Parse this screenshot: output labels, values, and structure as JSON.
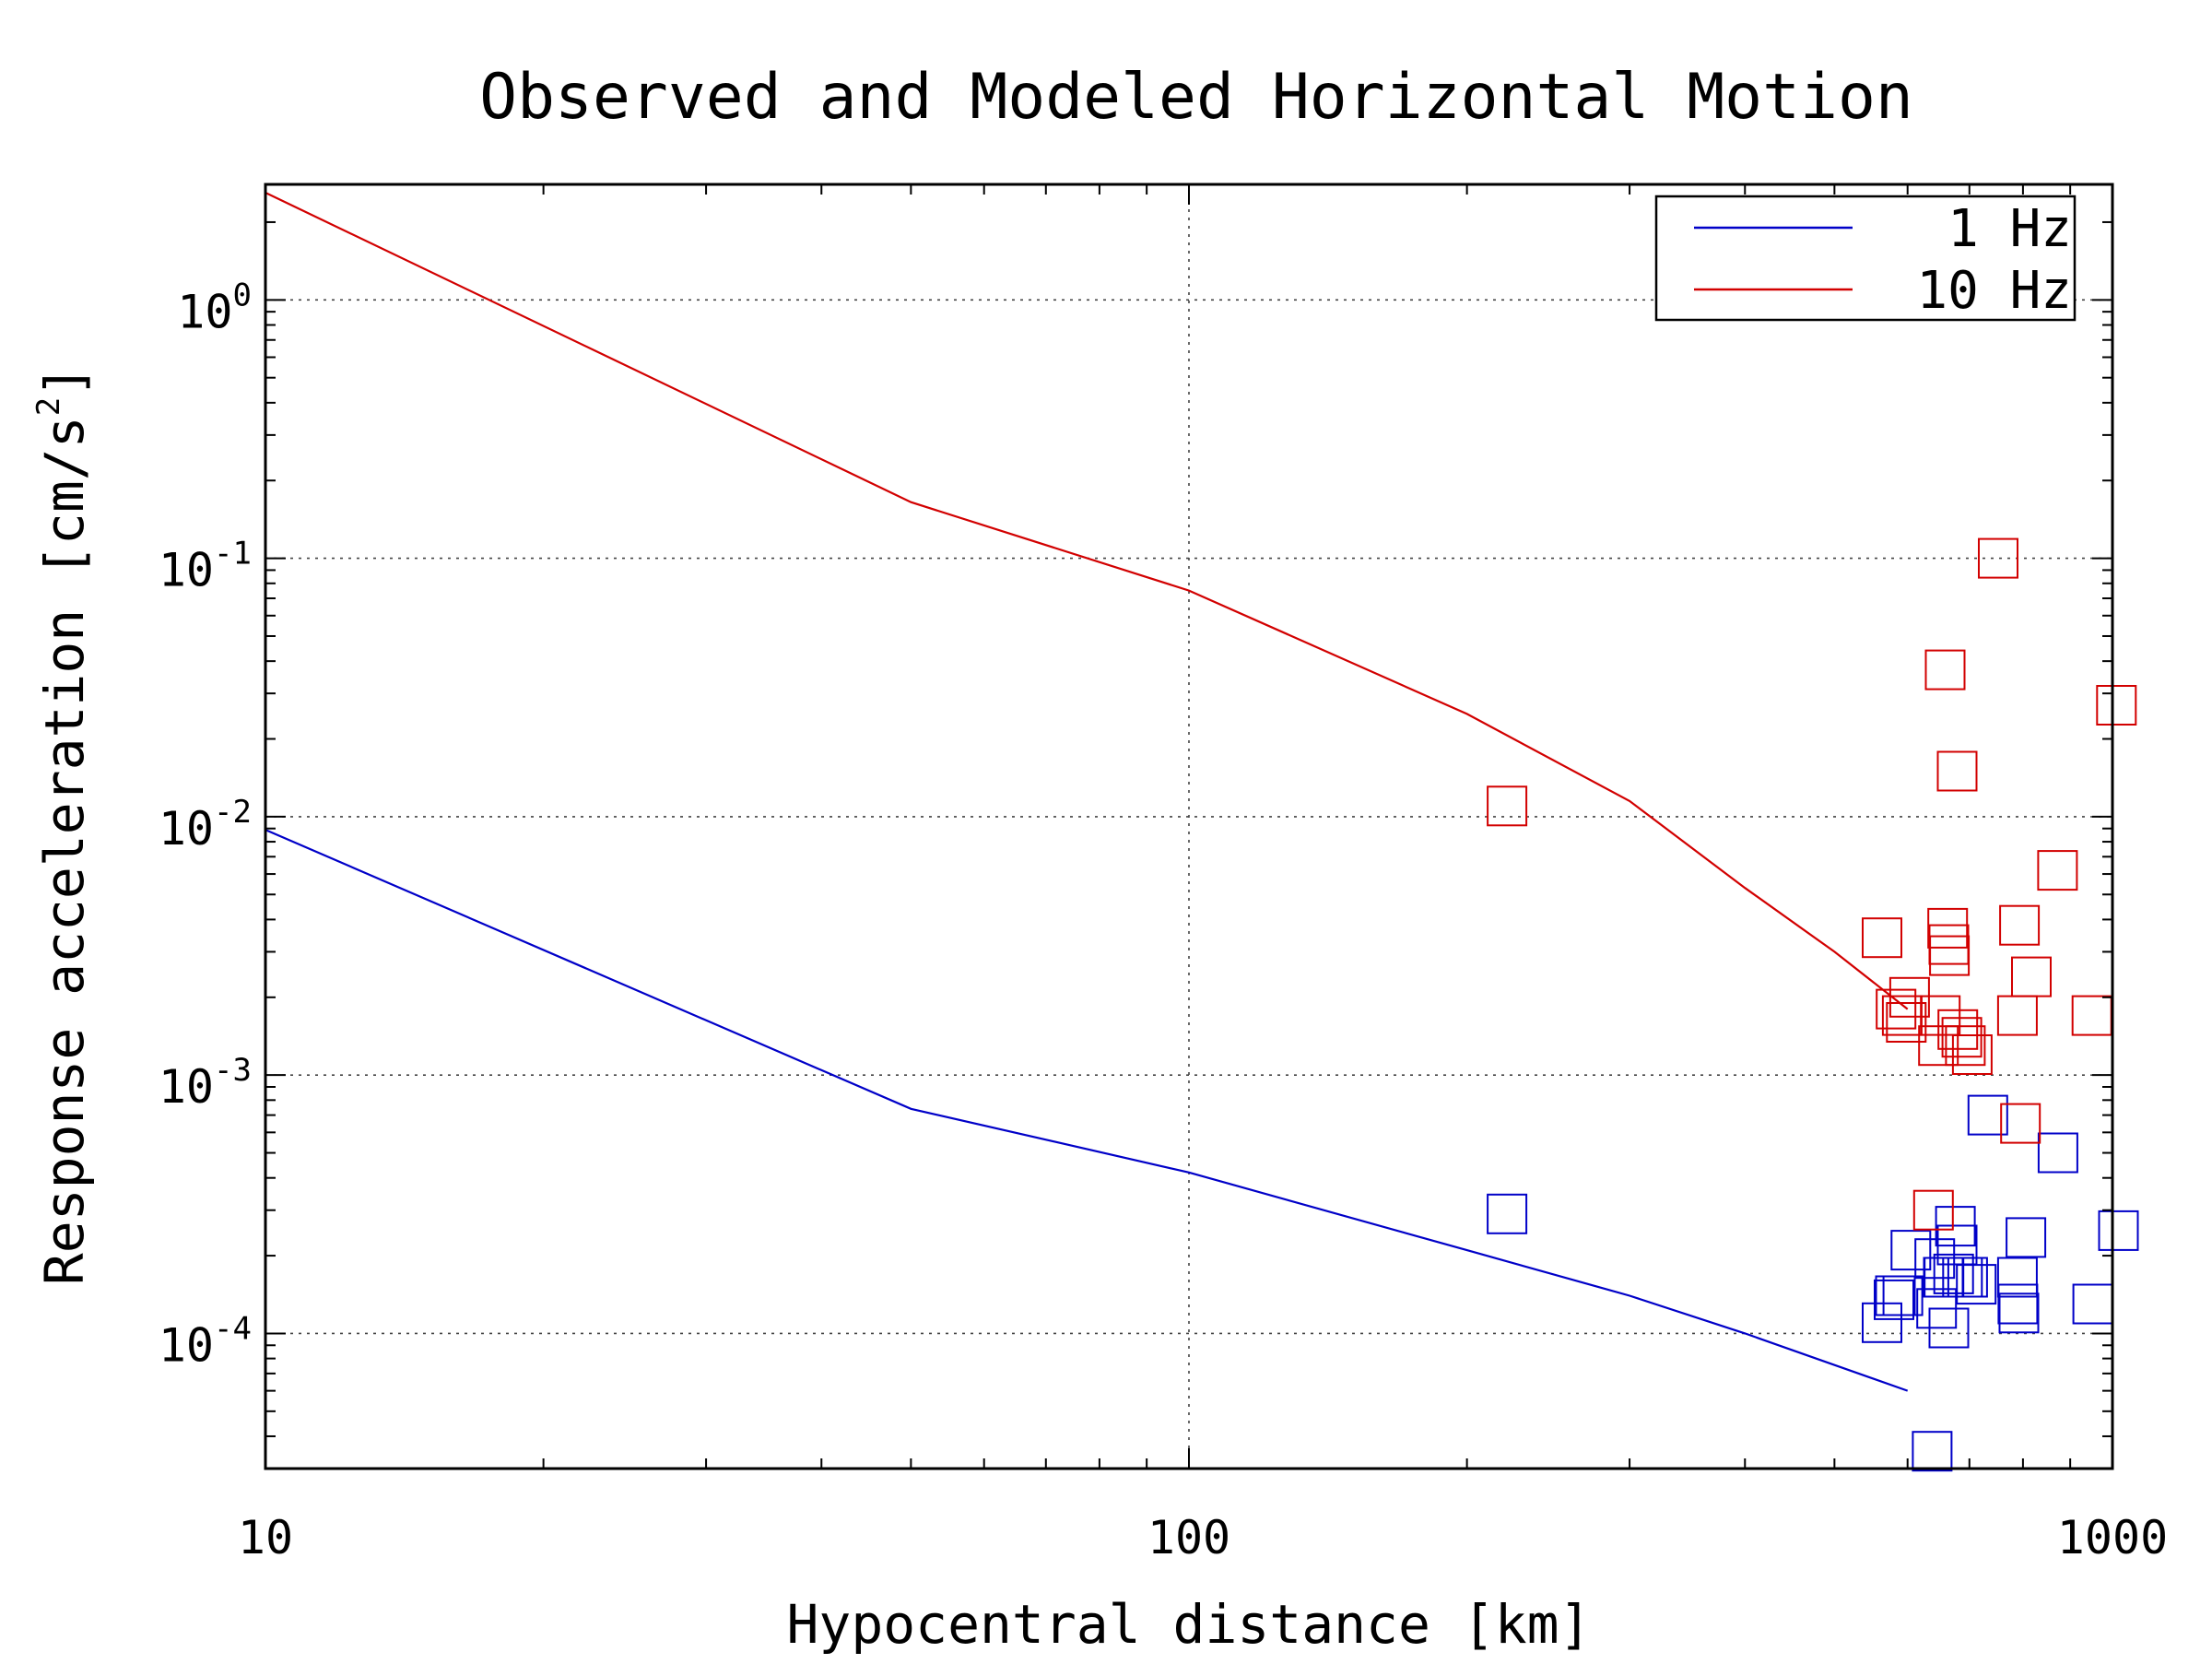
{
  "chart_data": {
    "type": "scatter",
    "title": "Observed and Modeled Horizontal Motion",
    "xlabel": "Hypocentral distance [km]",
    "ylabel": "Response acceleration [cm/s",
    "ylabel_sup": "2",
    "ylabel_close": "]",
    "x_scale": "log",
    "y_scale": "log",
    "xlim": [
      10,
      1000
    ],
    "ylim": [
      3e-05,
      2.8
    ],
    "x_ticks": [
      {
        "value": 10,
        "label": "10"
      },
      {
        "value": 100,
        "label": "100"
      },
      {
        "value": 1000,
        "label": "1000"
      }
    ],
    "y_ticks": [
      {
        "value": 1,
        "base": "10",
        "exp": "0"
      },
      {
        "value": 0.1,
        "base": "10",
        "exp": "-1"
      },
      {
        "value": 0.01,
        "base": "10",
        "exp": "-2"
      },
      {
        "value": 0.001,
        "base": "10",
        "exp": "-3"
      },
      {
        "value": 0.0001,
        "base": "10",
        "exp": "-4"
      }
    ],
    "grid": true,
    "legend_position": "top-right",
    "series": [
      {
        "name": "1 Hz",
        "color": "#0000c8",
        "line": [
          [
            10,
            0.0089
          ],
          [
            50,
            0.00074
          ],
          [
            100,
            0.00042
          ],
          [
            200,
            0.00021
          ],
          [
            300,
            0.00014
          ],
          [
            400,
            0.0001
          ],
          [
            600,
            6e-05
          ]
        ],
        "points": [
          [
            221,
            0.00029
          ],
          [
            563,
            0.00011
          ],
          [
            605,
            0.00021
          ],
          [
            593,
            0.00014
          ],
          [
            580,
            0.000135
          ],
          [
            582,
            0.00014
          ],
          [
            642,
            0.000195
          ],
          [
            645,
            0.000125
          ],
          [
            656,
            0.000165
          ],
          [
            657,
            0.000165
          ],
          [
            665,
            0.000105
          ],
          [
            676,
            0.00026
          ],
          [
            679,
            0.00022
          ],
          [
            673,
            0.00017
          ],
          [
            688,
            0.000165
          ],
          [
            697,
            0.000165
          ],
          [
            712,
            0.000155
          ],
          [
            733,
            0.0007
          ],
          [
            789,
            0.000165
          ],
          [
            790,
            0.00013
          ],
          [
            792,
            0.00012
          ],
          [
            806,
            0.000235
          ],
          [
            873,
            0.0005
          ],
          [
            952,
            0.00013
          ],
          [
            1015,
            0.00025
          ],
          [
            638,
            3.5e-05
          ]
        ]
      },
      {
        "name": "10 Hz",
        "color": "#d20000",
        "line": [
          [
            10,
            2.6
          ],
          [
            50,
            0.165
          ],
          [
            100,
            0.075
          ],
          [
            200,
            0.025
          ],
          [
            300,
            0.0115
          ],
          [
            400,
            0.0053
          ],
          [
            500,
            0.003
          ],
          [
            600,
            0.0018
          ]
        ],
        "points": [
          [
            221,
            0.011
          ],
          [
            563,
            0.0034
          ],
          [
            583,
            0.0018
          ],
          [
            592,
            0.0017
          ],
          [
            603,
            0.002
          ],
          [
            598,
            0.0016
          ],
          [
            651,
            0.0017
          ],
          [
            648,
            0.0013
          ],
          [
            659,
            0.037
          ],
          [
            663,
            0.0037
          ],
          [
            665,
            0.0032
          ],
          [
            666,
            0.0029
          ],
          [
            680,
            0.0015
          ],
          [
            687,
            0.0014
          ],
          [
            693,
            0.0013
          ],
          [
            705,
            0.0012
          ],
          [
            679,
            0.015
          ],
          [
            752,
            0.1
          ],
          [
            789,
            0.0017
          ],
          [
            793,
            0.0038
          ],
          [
            795,
            0.00065
          ],
          [
            817,
            0.0024
          ],
          [
            872,
            0.0062
          ],
          [
            950,
            0.0017
          ],
          [
            1010,
            0.027
          ],
          [
            640,
            0.0003
          ]
        ]
      }
    ]
  }
}
